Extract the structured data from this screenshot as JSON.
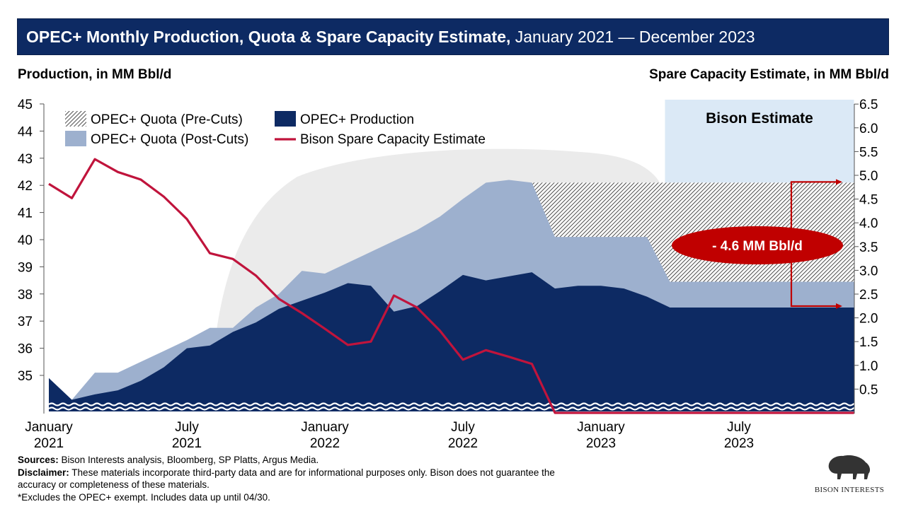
{
  "header": {
    "title_bold": "OPEC+ Monthly Production, Quota & Spare Capacity Estimate,",
    "title_rest": " January 2021 — December 2023"
  },
  "axis_titles": {
    "left": "Production, in MM Bbl/d",
    "right": "Spare Capacity Estimate, in MM Bbl/d"
  },
  "chart_data": {
    "type": "area",
    "x": [
      "2021-01",
      "2021-02",
      "2021-03",
      "2021-04",
      "2021-05",
      "2021-06",
      "2021-07",
      "2021-08",
      "2021-09",
      "2021-10",
      "2021-11",
      "2021-12",
      "2022-01",
      "2022-02",
      "2022-03",
      "2022-04",
      "2022-05",
      "2022-06",
      "2022-07",
      "2022-08",
      "2022-09",
      "2022-10",
      "2022-11",
      "2022-12",
      "2023-01",
      "2023-02",
      "2023-03",
      "2023-04",
      "2023-05",
      "2023-06",
      "2023-07",
      "2023-08",
      "2023-09",
      "2023-10",
      "2023-11",
      "2023-12"
    ],
    "x_tick_labels": [
      {
        "month": "2021-01",
        "line1": "January",
        "line2": "2021"
      },
      {
        "month": "2021-07",
        "line1": "July",
        "line2": "2021"
      },
      {
        "month": "2022-01",
        "line1": "January",
        "line2": "2022"
      },
      {
        "month": "2022-07",
        "line1": "July",
        "line2": "2022"
      },
      {
        "month": "2023-01",
        "line1": "January",
        "line2": "2023"
      },
      {
        "month": "2023-07",
        "line1": "July",
        "line2": "2023"
      }
    ],
    "left_axis": {
      "ticks": [
        "35",
        "36",
        "37",
        "38",
        "39",
        "40",
        "41",
        "42",
        "43",
        "44",
        "45"
      ],
      "ylim": [
        33.7,
        45
      ],
      "broken": true
    },
    "right_axis": {
      "ticks": [
        "0.5",
        "1.0",
        "1.5",
        "2.0",
        "2.5",
        "3.0",
        "3.5",
        "4.0",
        "4.5",
        "5.0",
        "5.5",
        "6.0",
        "6.5"
      ],
      "ylim": [
        0,
        6.5
      ]
    },
    "series": [
      {
        "name": "OPEC+ Quota (Pre-Cuts)",
        "axis": "left",
        "style": "hatched",
        "color": "#000000",
        "values": [
          null,
          null,
          null,
          null,
          null,
          null,
          null,
          null,
          null,
          null,
          null,
          null,
          null,
          null,
          null,
          null,
          null,
          null,
          null,
          null,
          null,
          42.1,
          42.1,
          42.1,
          42.1,
          42.1,
          42.1,
          42.1,
          42.1,
          42.1,
          42.1,
          42.1,
          42.1,
          42.1,
          42.1,
          42.1
        ]
      },
      {
        "name": "OPEC+ Quota (Post-Cuts)",
        "axis": "left",
        "style": "area",
        "color": "#9db0ce",
        "values": [
          34.9,
          34.1,
          35.1,
          35.1,
          35.5,
          35.9,
          36.3,
          36.75,
          36.75,
          37.5,
          38.0,
          38.85,
          38.75,
          39.15,
          39.55,
          39.95,
          40.35,
          40.85,
          41.5,
          42.1,
          42.2,
          42.1,
          40.1,
          40.1,
          40.1,
          40.1,
          40.1,
          38.45,
          38.45,
          38.45,
          38.45,
          38.45,
          38.45,
          38.45,
          38.45,
          38.45
        ]
      },
      {
        "name": "OPEC+ Production",
        "axis": "left",
        "style": "area",
        "color": "#0d2a63",
        "values": [
          34.9,
          34.1,
          34.3,
          34.45,
          34.8,
          35.3,
          36.0,
          36.1,
          36.6,
          36.95,
          37.45,
          37.75,
          38.05,
          38.4,
          38.3,
          37.35,
          37.55,
          38.1,
          38.7,
          38.5,
          38.65,
          38.8,
          38.2,
          38.3,
          38.3,
          38.2,
          37.9,
          37.5,
          37.5,
          37.5,
          37.5,
          37.5,
          37.5,
          37.5,
          37.5,
          37.5
        ]
      },
      {
        "name": "Bison Spare Capacity Estimate",
        "axis": "right",
        "style": "line",
        "color": "#c0143c",
        "values": [
          4.82,
          4.52,
          5.34,
          5.07,
          4.91,
          4.55,
          4.08,
          3.36,
          3.24,
          2.89,
          2.4,
          2.1,
          1.77,
          1.43,
          1.5,
          2.47,
          2.22,
          1.73,
          1.12,
          1.32,
          1.18,
          1.03,
          0,
          0,
          0,
          0,
          0,
          0,
          0,
          0,
          0,
          0,
          0,
          0,
          0,
          0
        ]
      }
    ],
    "legend_placement": "top-left",
    "annotations": [
      {
        "text": "Bison Estimate",
        "type": "shaded-region",
        "from": "2023-04",
        "to": "2023-12",
        "color": "#dbe9f6"
      },
      {
        "text": "- 4.6 MM Bbl/d",
        "type": "bracket",
        "from_value": 42.1,
        "to_value": 37.5,
        "color": "#c00000"
      }
    ],
    "grid": false
  },
  "footer": {
    "sources_label": "Sources:",
    "sources_text": " Bison Interests analysis, Bloomberg, SP Platts, Argus Media.",
    "disclaimer_label": "Disclaimer:",
    "disclaimer_text": " These materials incorporate third-party data and are for informational purposes only. Bison does not guarantee the accuracy or completeness of these materials.",
    "note": "*Excludes the OPEC+ exempt. Includes data up until 04/30."
  },
  "logo": {
    "text": "BISON INTERESTS"
  }
}
